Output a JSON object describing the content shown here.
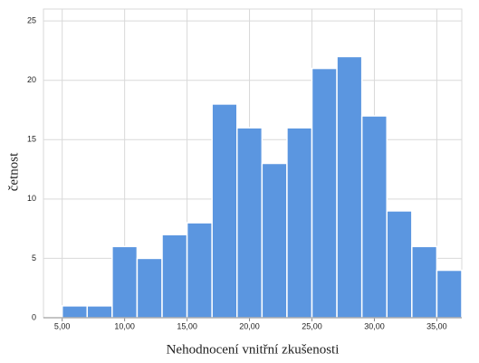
{
  "chart_data": {
    "type": "histogram",
    "x_label": "Nehodnocení vnitřní zkušenosti",
    "y_label": "četnost",
    "bins": [
      5,
      7,
      9,
      11,
      13,
      15,
      17,
      19,
      21,
      23,
      25,
      27,
      29,
      31,
      33,
      35,
      37
    ],
    "values": [
      1,
      1,
      6,
      5,
      7,
      8,
      18,
      16,
      13,
      16,
      21,
      22,
      17,
      9,
      6,
      4
    ],
    "color": "#5b96e0",
    "xlim": [
      3.5,
      37
    ],
    "ylim": [
      0,
      26
    ],
    "xticks": [
      {
        "value": 5,
        "label": "5,00"
      },
      {
        "value": 10,
        "label": "10,00"
      },
      {
        "value": 15,
        "label": "15,00"
      },
      {
        "value": 20,
        "label": "20,00"
      },
      {
        "value": 25,
        "label": "25,00"
      },
      {
        "value": 30,
        "label": "30,00"
      },
      {
        "value": 35,
        "label": "35,00"
      }
    ],
    "yticks": [
      0,
      5,
      10,
      15,
      20,
      25
    ],
    "grid": true
  }
}
